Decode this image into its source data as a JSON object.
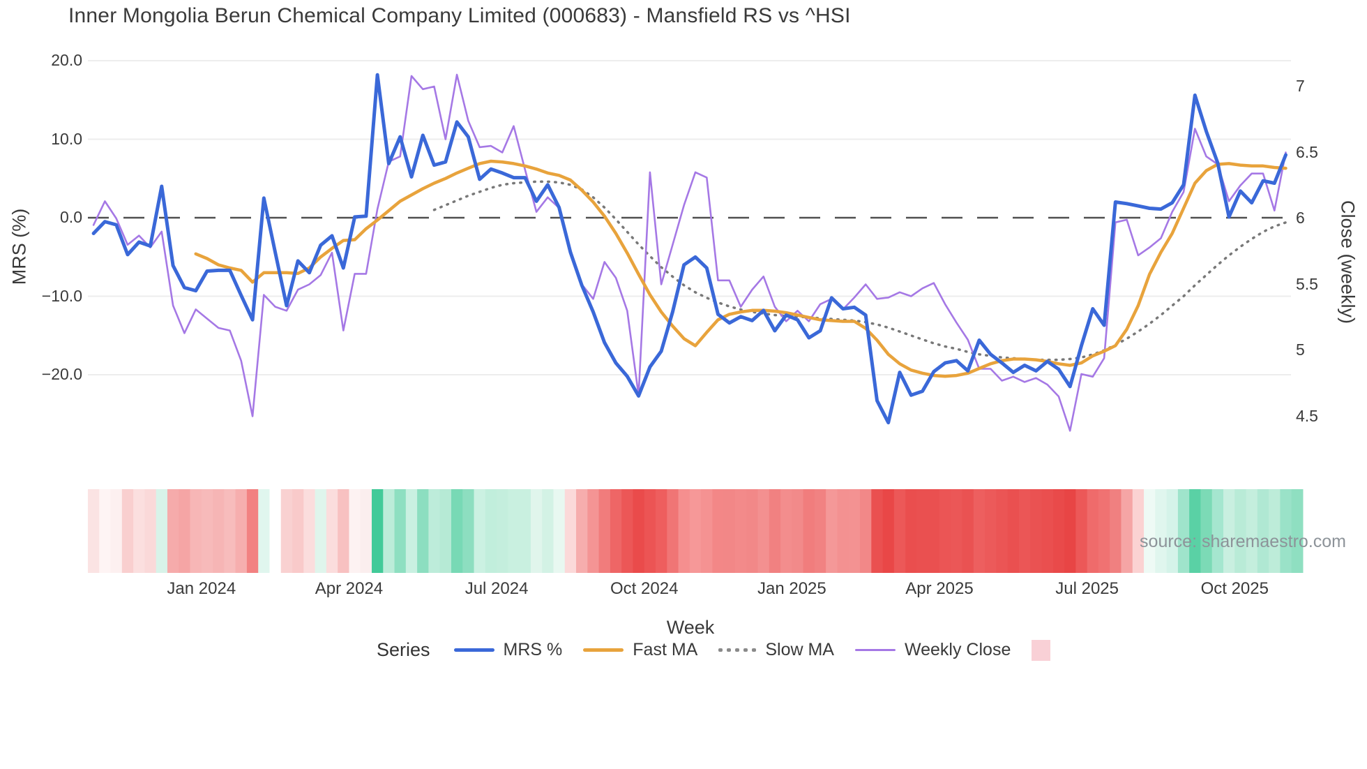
{
  "title": "Inner Mongolia Berun Chemical Company Limited (000683) - Mansfield RS vs ^HSI",
  "source": "source: sharemaestro.com",
  "axes": {
    "left": {
      "title": "MRS (%)",
      "ticks": [
        {
          "v": 20,
          "label": "20.0"
        },
        {
          "v": 10,
          "label": "10.0"
        },
        {
          "v": 0,
          "label": "0.0"
        },
        {
          "v": -10,
          "label": "−10.0"
        },
        {
          "v": -20,
          "label": "−20.0"
        }
      ]
    },
    "right": {
      "title": "Close (weekly)",
      "ticks": [
        {
          "v": 7,
          "label": "7"
        },
        {
          "v": 6.5,
          "label": "6.5"
        },
        {
          "v": 6,
          "label": "6"
        },
        {
          "v": 5.5,
          "label": "5.5"
        },
        {
          "v": 5,
          "label": "5"
        },
        {
          "v": 4.5,
          "label": "4.5"
        }
      ]
    },
    "x": {
      "title": "Week",
      "ticks": [
        {
          "week": 10,
          "label": "Jan 2024"
        },
        {
          "week": 23,
          "label": "Apr 2024"
        },
        {
          "week": 36,
          "label": "Jul 2024"
        },
        {
          "week": 49,
          "label": "Oct 2024"
        },
        {
          "week": 62,
          "label": "Jan 2025"
        },
        {
          "week": 75,
          "label": "Apr 2025"
        },
        {
          "week": 88,
          "label": "Jul 2025"
        },
        {
          "week": 101,
          "label": "Oct 2025"
        }
      ]
    }
  },
  "legend": {
    "heading": "Series",
    "items": [
      {
        "label": "MRS %",
        "color": "#3a68d8",
        "type": "line"
      },
      {
        "label": "Fast MA",
        "color": "#e8a33c",
        "type": "line"
      },
      {
        "label": "Slow MA",
        "color": "#8a8a8a",
        "type": "dots"
      },
      {
        "label": "Weekly Close",
        "color": "#a578e5",
        "type": "thin"
      },
      {
        "label": "",
        "color": "#f9d0d6",
        "type": "swatch"
      }
    ]
  },
  "chart_data": {
    "type": "line",
    "x_unit": "week index (weekly bars, Nov 2023 – Nov 2025)",
    "grid": true,
    "zero_line_dashed": true,
    "left_axis_range": [
      -27,
      21
    ],
    "right_axis_range": [
      4.3,
      7.2
    ],
    "series": [
      {
        "name": "MRS %",
        "axis": "left",
        "color": "#3a68d8",
        "width": 5,
        "values": [
          -2.0,
          -0.5,
          -0.9,
          -4.7,
          -3.1,
          -3.6,
          4.0,
          -6.1,
          -8.9,
          -9.3,
          -6.8,
          -6.7,
          -6.7,
          -9.9,
          -13.0,
          2.5,
          -4.4,
          -11.2,
          -5.5,
          -7.0,
          -3.5,
          -2.3,
          -6.4,
          0.1,
          0.2,
          18.2,
          6.9,
          10.3,
          5.2,
          10.5,
          6.7,
          7.1,
          12.2,
          10.3,
          4.9,
          6.2,
          5.7,
          5.1,
          5.1,
          2.1,
          4.2,
          1.3,
          -4.4,
          -8.6,
          -12.0,
          -15.9,
          -18.5,
          -20.2,
          -22.7,
          -19.0,
          -17.0,
          -12.0,
          -6.0,
          -5.0,
          -6.4,
          -12.3,
          -13.4,
          -12.6,
          -13.1,
          -11.8,
          -14.4,
          -12.4,
          -13.0,
          -15.3,
          -14.4,
          -10.2,
          -11.6,
          -11.4,
          -12.4,
          -23.3,
          -26.1,
          -19.7,
          -22.6,
          -22.1,
          -19.6,
          -18.5,
          -18.2,
          -19.5,
          -15.6,
          -17.4,
          -18.5,
          -19.7,
          -18.8,
          -19.5,
          -18.3,
          -19.3,
          -21.5,
          -16.3,
          -11.6,
          -13.7,
          2.0,
          1.8,
          1.5,
          1.2,
          1.1,
          1.9,
          4.2,
          15.6,
          11.0,
          7.0,
          0.1,
          3.4,
          1.9,
          4.7,
          4.4,
          8.0
        ]
      },
      {
        "name": "Fast MA",
        "axis": "left",
        "color": "#e8a33c",
        "width": 4.5,
        "values": [
          null,
          null,
          null,
          null,
          null,
          null,
          null,
          null,
          null,
          -4.6,
          -5.2,
          -6.0,
          -6.4,
          -6.7,
          -8.2,
          -7.0,
          -7.0,
          -7.0,
          -7.1,
          -6.4,
          -5.0,
          -3.9,
          -2.9,
          -2.8,
          -1.4,
          -0.3,
          0.9,
          2.1,
          2.9,
          3.7,
          4.4,
          5.0,
          5.7,
          6.3,
          6.9,
          7.2,
          7.1,
          6.9,
          6.6,
          6.2,
          5.7,
          5.4,
          4.8,
          3.5,
          2.0,
          0.2,
          -2.0,
          -4.5,
          -7.2,
          -9.8,
          -12.0,
          -13.8,
          -15.4,
          -16.3,
          -14.6,
          -13.0,
          -12.3,
          -12.0,
          -11.8,
          -11.8,
          -11.9,
          -12.1,
          -12.4,
          -12.7,
          -13.0,
          -13.1,
          -13.2,
          -13.2,
          -14.1,
          -15.6,
          -17.4,
          -18.6,
          -19.4,
          -19.8,
          -20.1,
          -20.2,
          -20.1,
          -19.8,
          -19.2,
          -18.6,
          -18.2,
          -18.0,
          -18.0,
          -18.1,
          -18.3,
          -18.6,
          -18.8,
          -18.5,
          -17.6,
          -17.0,
          -16.3,
          -14.2,
          -11.2,
          -7.2,
          -4.4,
          -2.0,
          1.2,
          4.4,
          6.0,
          6.8,
          6.9,
          6.7,
          6.6,
          6.6,
          6.4,
          6.3
        ]
      },
      {
        "name": "Slow MA",
        "axis": "left",
        "color": "#787878",
        "width": 3.5,
        "dotted": true,
        "values": [
          null,
          null,
          null,
          null,
          null,
          null,
          null,
          null,
          null,
          null,
          null,
          null,
          null,
          null,
          null,
          null,
          null,
          null,
          null,
          null,
          null,
          null,
          null,
          null,
          null,
          null,
          null,
          null,
          null,
          null,
          1.0,
          1.6,
          2.2,
          2.8,
          3.3,
          3.8,
          4.2,
          4.4,
          4.5,
          4.6,
          4.6,
          4.5,
          4.2,
          3.6,
          2.6,
          1.3,
          -0.2,
          -1.8,
          -3.4,
          -4.9,
          -6.3,
          -7.5,
          -8.6,
          -9.5,
          -10.2,
          -10.8,
          -11.3,
          -11.7,
          -12.0,
          -12.2,
          -12.4,
          -12.5,
          -12.6,
          -12.7,
          -12.8,
          -12.9,
          -13.0,
          -13.1,
          -13.3,
          -13.6,
          -14.0,
          -14.5,
          -15.0,
          -15.5,
          -16.0,
          -16.4,
          -16.7,
          -17.1,
          -17.4,
          -17.6,
          -17.8,
          -17.9,
          -18.0,
          -18.1,
          -18.1,
          -18.1,
          -18.0,
          -17.8,
          -17.4,
          -16.9,
          -16.2,
          -15.4,
          -14.5,
          -13.5,
          -12.4,
          -11.2,
          -10.0,
          -8.6,
          -7.3,
          -6.0,
          -4.8,
          -3.7,
          -2.7,
          -1.8,
          -1.1,
          -0.6
        ]
      },
      {
        "name": "Weekly Close",
        "axis": "right",
        "color": "#a578e5",
        "width": 2.6,
        "values": [
          5.95,
          6.13,
          6.0,
          5.8,
          5.87,
          5.78,
          5.9,
          5.34,
          5.13,
          5.31,
          5.24,
          5.17,
          5.15,
          4.92,
          4.5,
          5.42,
          5.33,
          5.3,
          5.46,
          5.5,
          5.57,
          5.74,
          5.15,
          5.58,
          5.58,
          6.07,
          6.43,
          6.47,
          7.08,
          6.98,
          7.0,
          6.6,
          7.09,
          6.74,
          6.54,
          6.55,
          6.5,
          6.7,
          6.37,
          6.05,
          6.16,
          6.08,
          5.75,
          5.5,
          5.39,
          5.67,
          5.55,
          5.3,
          4.66,
          6.35,
          5.5,
          5.8,
          6.1,
          6.35,
          6.31,
          5.53,
          5.53,
          5.33,
          5.46,
          5.56,
          5.33,
          5.22,
          5.3,
          5.22,
          5.35,
          5.39,
          5.31,
          5.4,
          5.5,
          5.39,
          5.4,
          5.44,
          5.41,
          5.47,
          5.51,
          5.35,
          5.21,
          5.08,
          4.86,
          4.86,
          4.77,
          4.8,
          4.76,
          4.79,
          4.74,
          4.65,
          4.39,
          4.82,
          4.8,
          4.94,
          5.97,
          5.99,
          5.72,
          5.78,
          5.85,
          6.05,
          6.2,
          6.68,
          6.47,
          6.41,
          6.13,
          6.25,
          6.34,
          6.34,
          6.06,
          6.5
        ]
      }
    ],
    "heatmap_strip": {
      "description": "weekly relative-strength heat cells below plot",
      "colors": [
        "#fbe3e3",
        "#fef4f4",
        "#fdf0f0",
        "#f9cfcf",
        "#fbdfdf",
        "#fad9d9",
        "#d8f3e9",
        "#f6abab",
        "#f5a5a5",
        "#f7b6b6",
        "#f7baba",
        "#f6b5b5",
        "#f7bcbc",
        "#f6aeae",
        "#f28181",
        "#e0f6ee",
        "#ffffff",
        "#f9d1d1",
        "#f9caca",
        "#fbdddd",
        "#dff5ec",
        "#fbdddd",
        "#f8c1c1",
        "#fdf2f2",
        "#fbeeee",
        "#42ca99",
        "#bcecd9",
        "#8edfc1",
        "#c9f0e1",
        "#8cdec0",
        "#bdecda",
        "#b6ead5",
        "#78d9b5",
        "#8ddec0",
        "#cbf1e2",
        "#c1eedc",
        "#c4eedd",
        "#c9f0e0",
        "#c9f0e0",
        "#e0f5ec",
        "#d3f2e5",
        "#e8f8f1",
        "#fbd9d9",
        "#f6adad",
        "#f49494",
        "#f17c7c",
        "#ee6666",
        "#ec5757",
        "#ea4b4b",
        "#ec5454",
        "#ee5e5e",
        "#f07575",
        "#f58f8f",
        "#f69898",
        "#f59292",
        "#f38787",
        "#f28787",
        "#f38a8a",
        "#f28888",
        "#f39090",
        "#f18181",
        "#f38d8d",
        "#f28a8a",
        "#f17d7d",
        "#f18282",
        "#f49898",
        "#f39191",
        "#f39292",
        "#f28888",
        "#ea5050",
        "#e94747",
        "#ec5858",
        "#ea4e4e",
        "#ea5050",
        "#ea5050",
        "#eb5555",
        "#eb5757",
        "#ea5252",
        "#ed5f5f",
        "#ec5a5a",
        "#eb5555",
        "#ea5050",
        "#eb5656",
        "#ea5252",
        "#ea4f4f",
        "#e94a4a",
        "#e84545",
        "#ec5858",
        "#ef6b6b",
        "#f07272",
        "#f08080",
        "#f5a5a5",
        "#fbd2d2",
        "#eefaf5",
        "#e0f6ee",
        "#d5f3e9",
        "#9fe4cb",
        "#5ad1a5",
        "#7cdab6",
        "#a5e6cf",
        "#c9efe0",
        "#b9ebd7",
        "#c4eedd",
        "#b0e8d3",
        "#bdecd9",
        "#9ae2c8",
        "#8fdfc1"
      ]
    }
  },
  "style": {
    "background": "#ffffff",
    "gridline_color": "#ededed",
    "zero_line_color": "#4f4f4f",
    "text_color": "#3a3a3a",
    "source_color": "#8d9399",
    "legend_swatch_pink": "#f9d0d6"
  }
}
